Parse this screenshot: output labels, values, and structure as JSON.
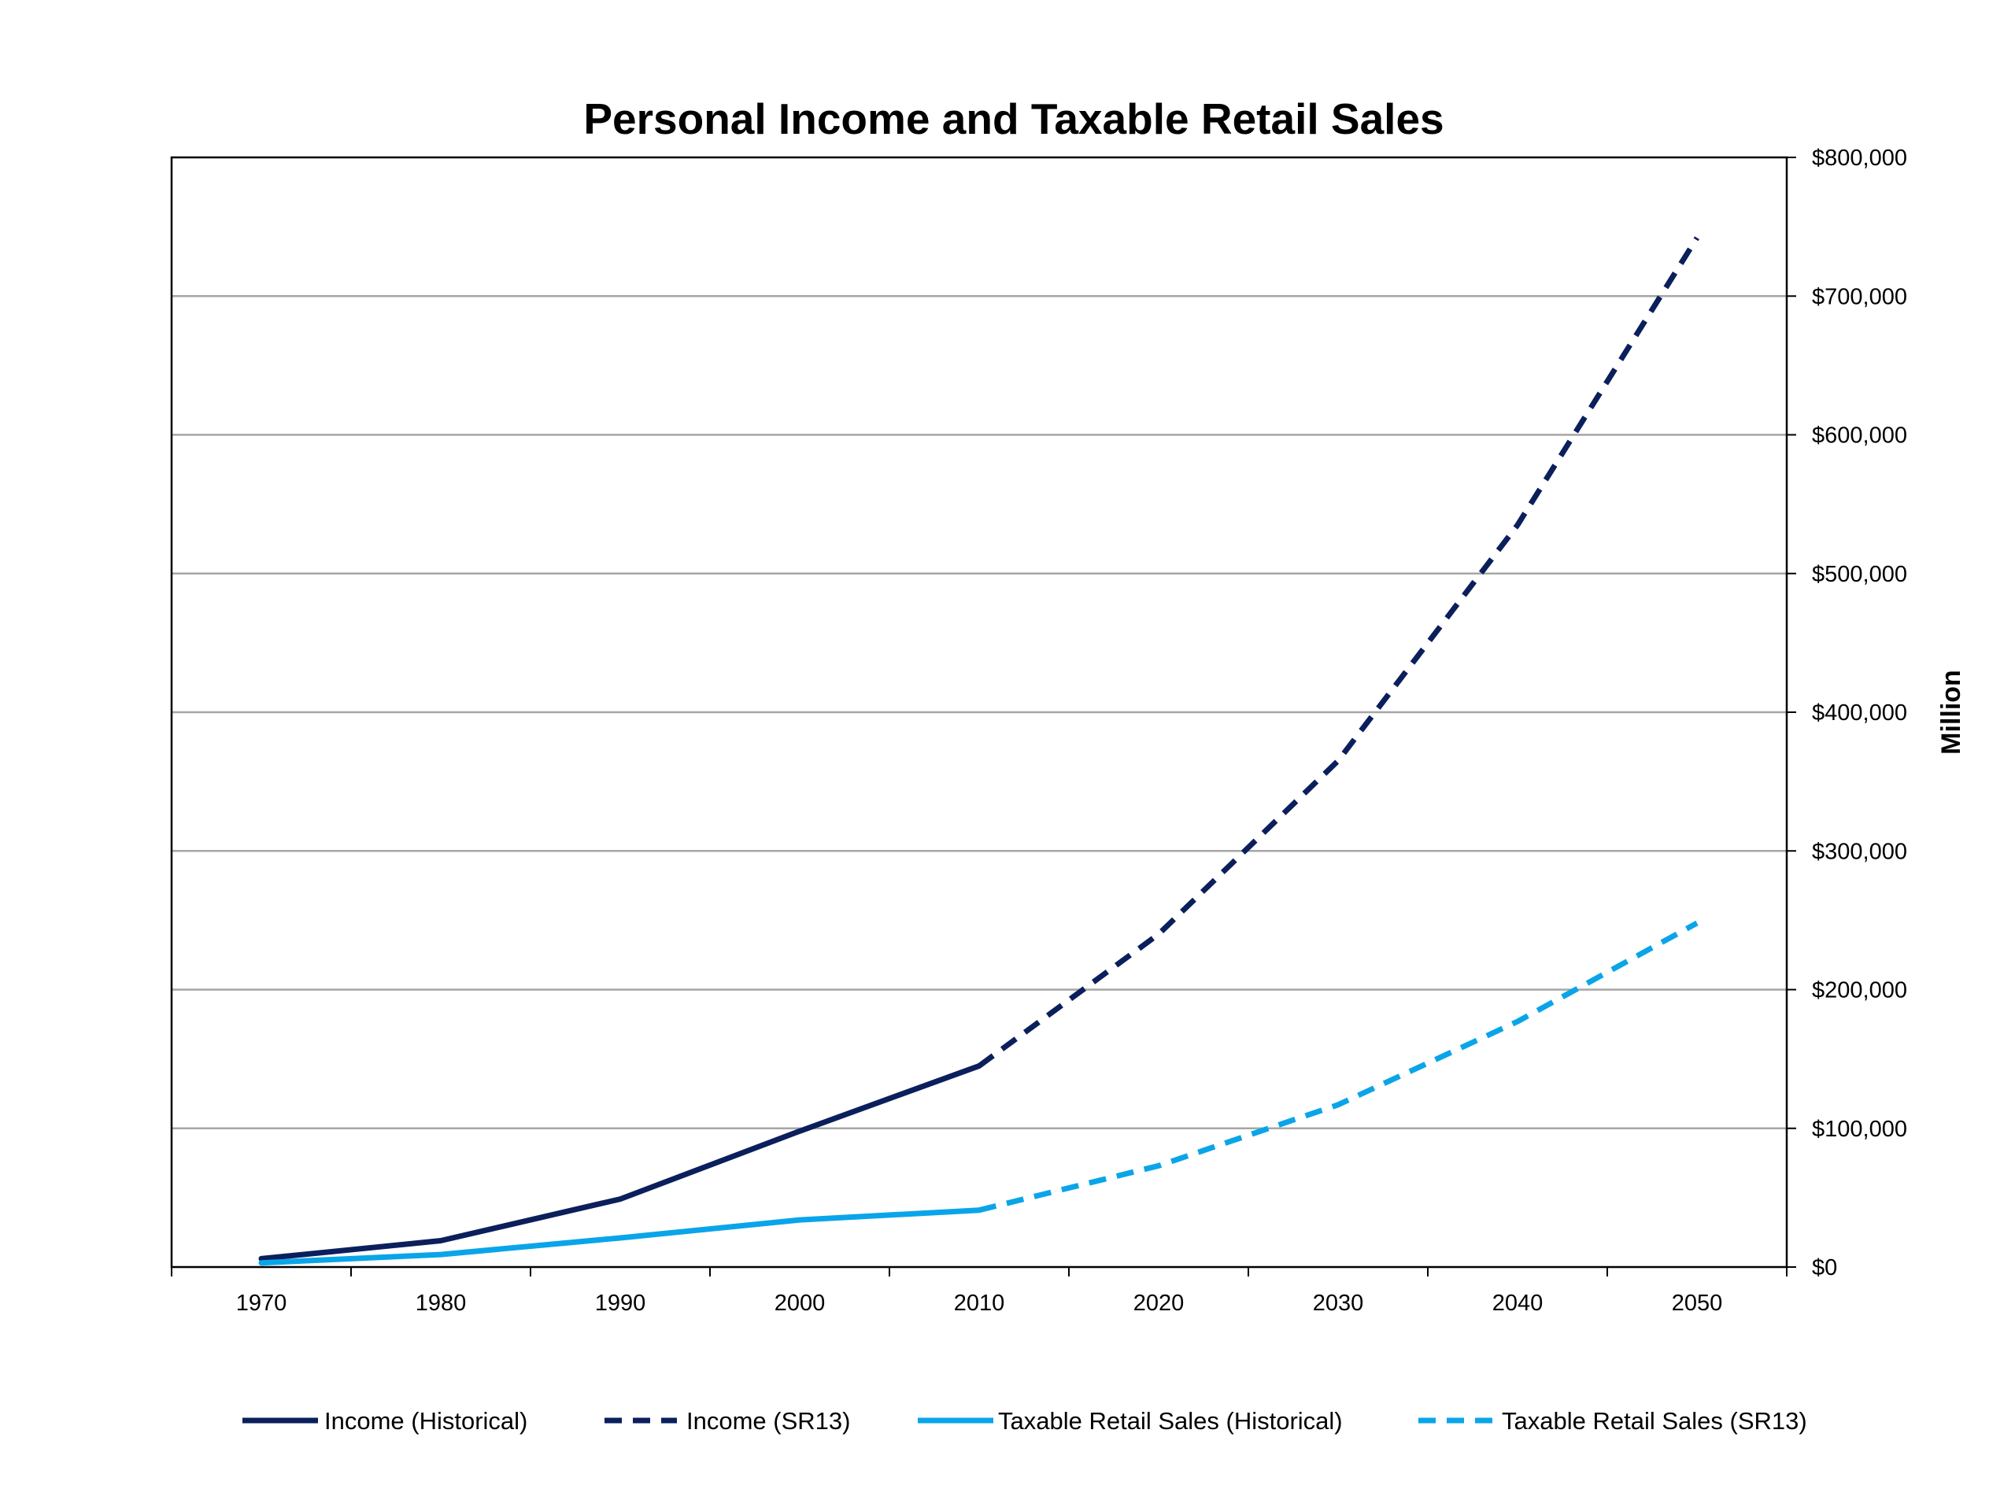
{
  "chart_data": {
    "type": "line",
    "title": "Personal Income and Taxable Retail Sales",
    "xlabel": "",
    "ylabel": "Million",
    "y_axis_side": "right",
    "ylim": [
      0,
      800000
    ],
    "y_ticks": [
      0,
      100000,
      200000,
      300000,
      400000,
      500000,
      600000,
      700000,
      800000
    ],
    "y_tick_labels": [
      "$0",
      "$100,000",
      "$200,000",
      "$300,000",
      "$400,000",
      "$500,000",
      "$600,000",
      "$700,000",
      "$800,000"
    ],
    "x_ticks": [
      1970,
      1980,
      1990,
      2000,
      2010,
      2020,
      2030,
      2040,
      2050
    ],
    "x_tick_labels": [
      "1970",
      "1980",
      "1990",
      "2000",
      "2010",
      "2020",
      "2030",
      "2040",
      "2050"
    ],
    "grid": "horizontal",
    "legend_position": "bottom",
    "series": [
      {
        "name": "Income (Historical)",
        "color": "#0b1f5c",
        "style": "solid",
        "x": [
          1970,
          1980,
          1990,
          2000,
          2010
        ],
        "y": [
          6000,
          19000,
          49000,
          98000,
          145000
        ]
      },
      {
        "name": "Income (SR13)",
        "color": "#0b1f5c",
        "style": "dashed",
        "x": [
          2010,
          2020,
          2030,
          2040,
          2050
        ],
        "y": [
          145000,
          240000,
          365000,
          535000,
          742000
        ]
      },
      {
        "name": "Taxable Retail Sales (Historical)",
        "color": "#0aa5e8",
        "style": "solid",
        "x": [
          1970,
          1980,
          1990,
          2000,
          2010
        ],
        "y": [
          3000,
          9000,
          21000,
          34000,
          41000
        ]
      },
      {
        "name": "Taxable Retail Sales (SR13)",
        "color": "#0aa5e8",
        "style": "dashed",
        "x": [
          2010,
          2020,
          2030,
          2040,
          2050
        ],
        "y": [
          41000,
          73000,
          117000,
          177000,
          248000
        ]
      }
    ]
  }
}
